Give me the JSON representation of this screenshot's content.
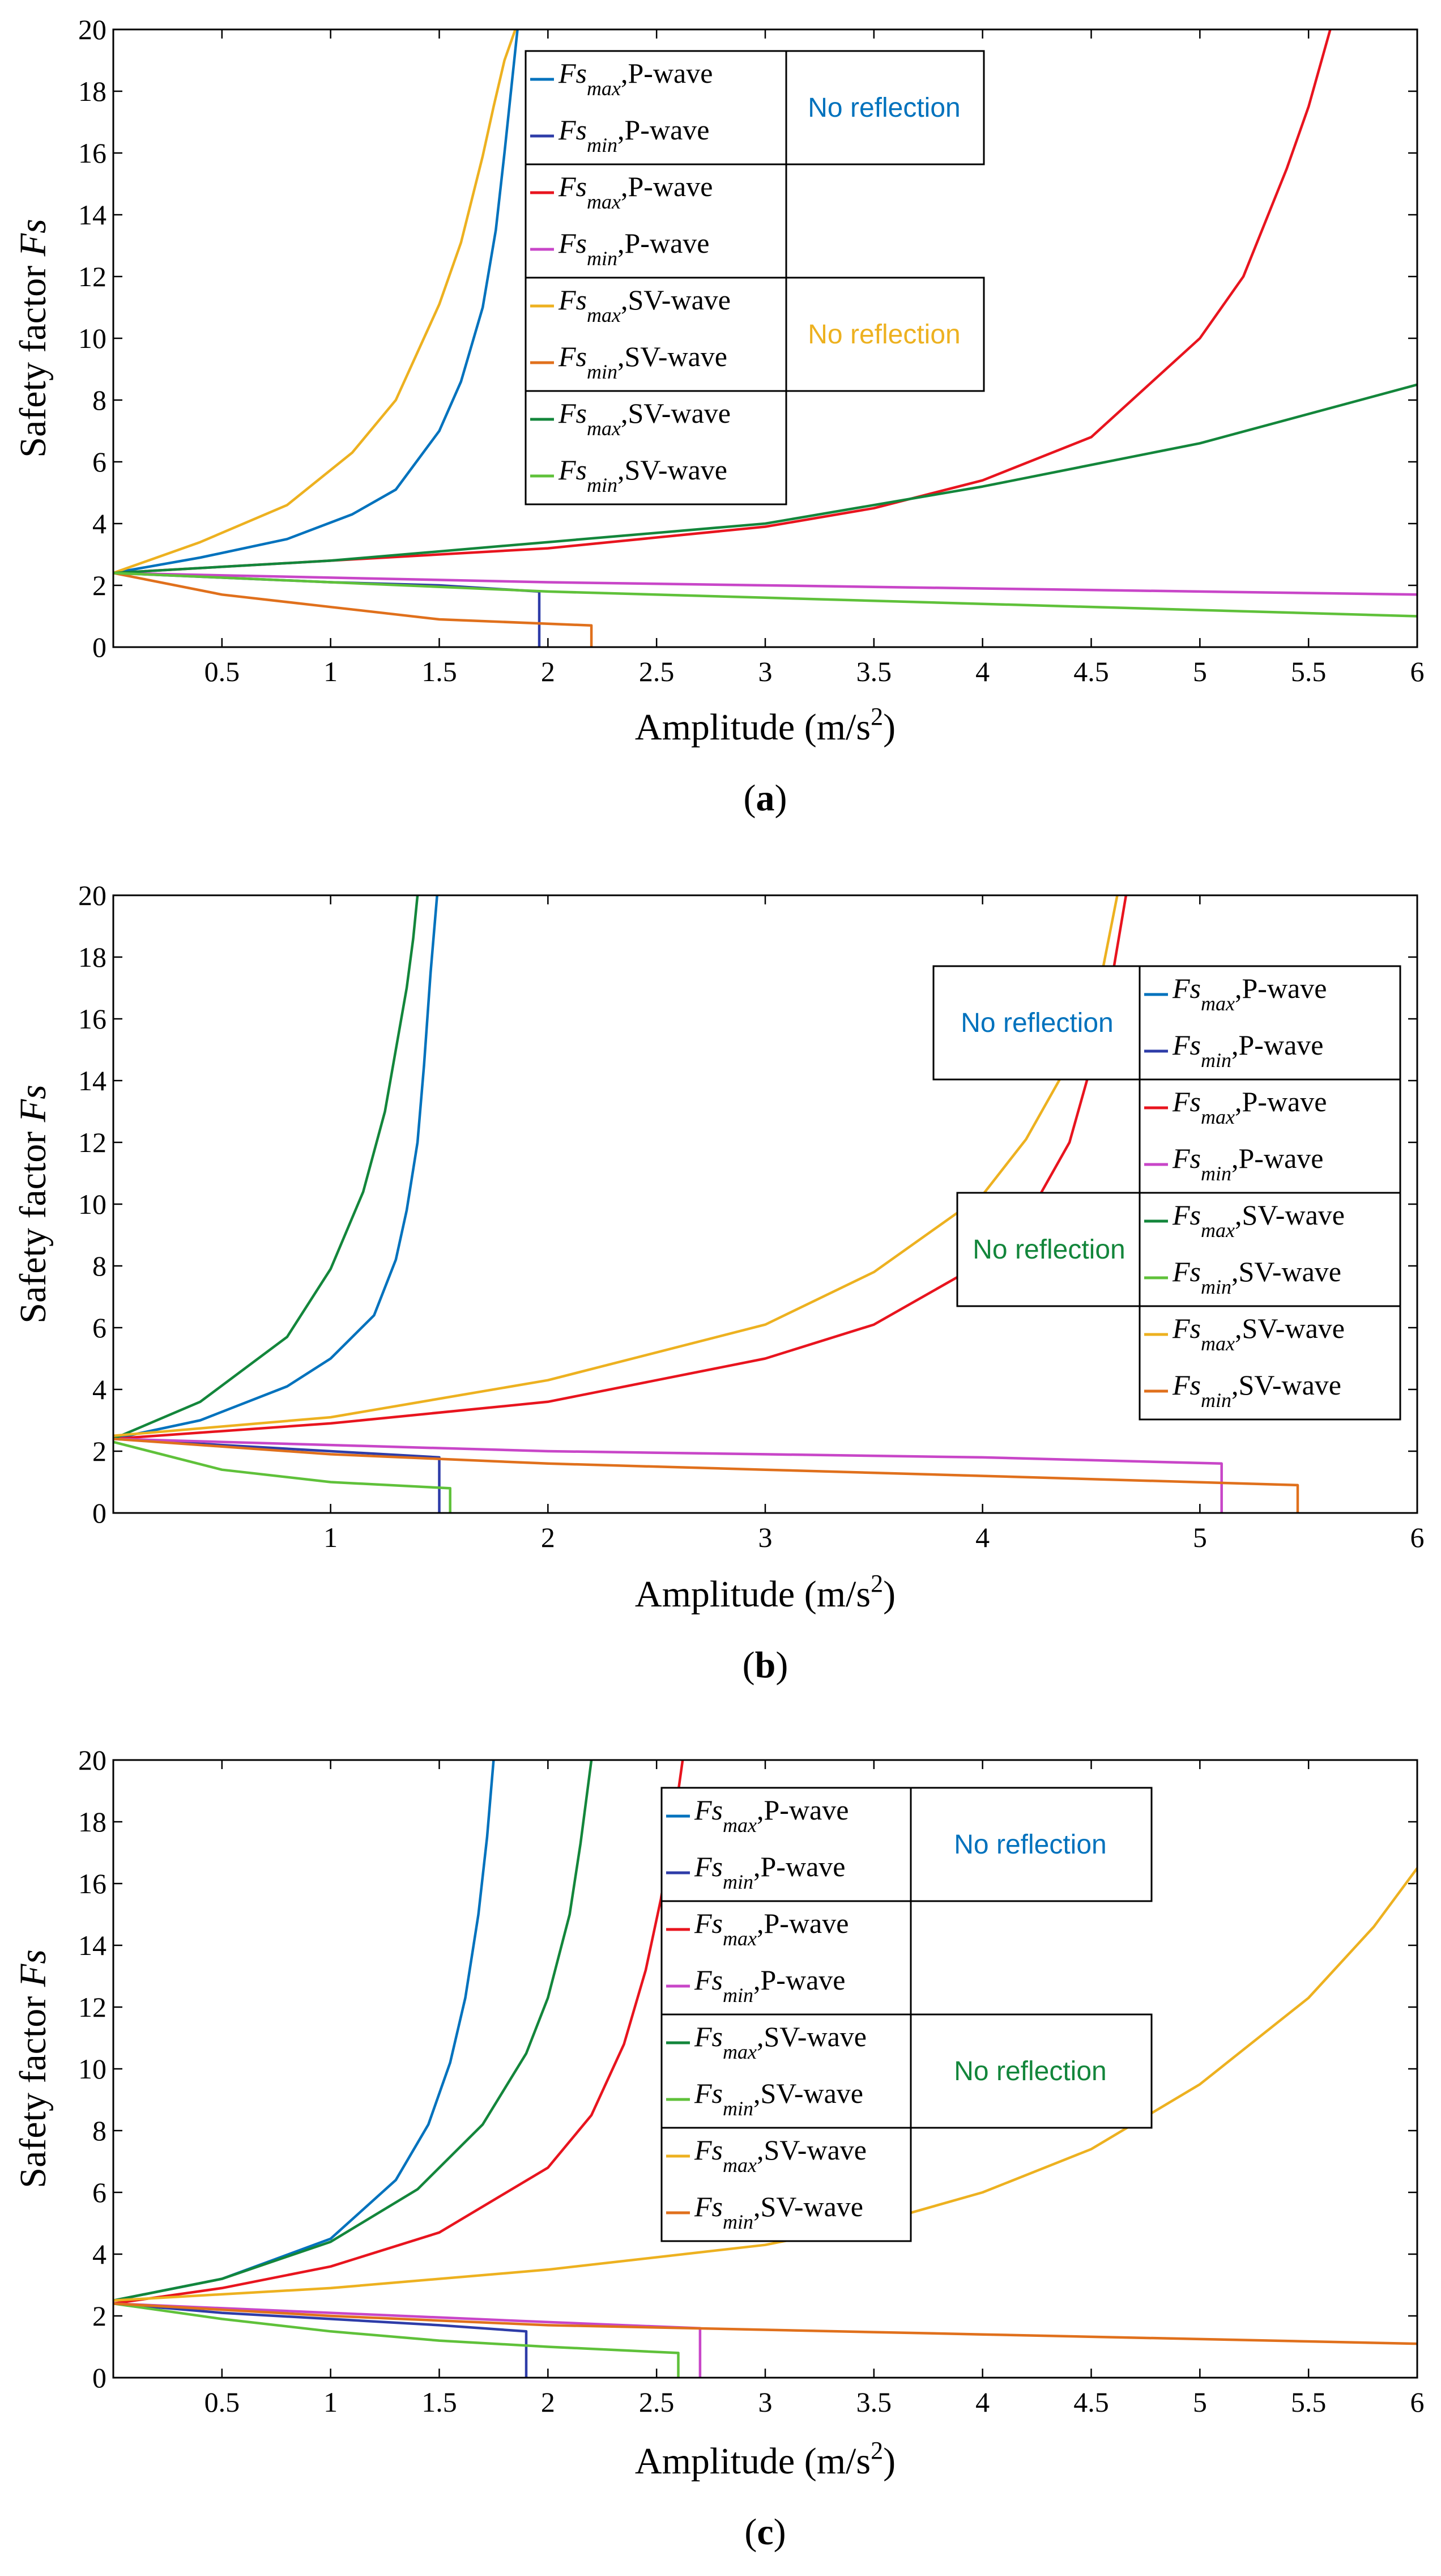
{
  "colors": {
    "blue": "#0072BD",
    "navy": "#2E3CA8",
    "red": "#E8141E",
    "magenta": "#C846C8",
    "yellow": "#EDB120",
    "orange": "#E0701C",
    "dkgreen": "#13863B",
    "ltgreen": "#5FC13A"
  },
  "chart_data": [
    {
      "type": "line",
      "panel_label": "(a)",
      "panel_label_parts": [
        "(",
        "a",
        ")"
      ],
      "xlabel_prefix": "Amplitude (m/s",
      "xlabel_sup": "2",
      "xlabel_suffix": ")",
      "ylabel_prefix": "Safety factor ",
      "ylabel_italic": "Fs",
      "xlim": [
        0,
        6
      ],
      "ylim": [
        0,
        20
      ],
      "xticks": [
        0.5,
        1,
        1.5,
        2,
        2.5,
        3,
        3.5,
        4,
        4.5,
        5,
        5.5,
        6
      ],
      "xtick_labels": [
        "0.5",
        "1",
        "1.5",
        "2",
        "2.5",
        "3",
        "3.5",
        "4",
        "4.5",
        "5",
        "5.5",
        "6"
      ],
      "yticks": [
        0,
        2,
        4,
        6,
        8,
        10,
        12,
        14,
        16,
        18,
        20
      ],
      "ytick_labels": [
        "0",
        "2",
        "4",
        "6",
        "8",
        "10",
        "12",
        "14",
        "16",
        "18",
        "20"
      ],
      "series": [
        {
          "name": "Fs_max, P-wave (no reflection)",
          "color": "blue",
          "x": [
            0,
            0.4,
            0.8,
            1.1,
            1.3,
            1.5,
            1.6,
            1.7,
            1.76,
            1.8,
            1.86
          ],
          "y": [
            2.4,
            2.9,
            3.5,
            4.3,
            5.1,
            7,
            8.6,
            11,
            13.5,
            16,
            20
          ]
        },
        {
          "name": "Fs_min, P-wave (no reflection)",
          "color": "navy",
          "x": [
            0,
            0.5,
            1,
            1.5,
            1.96,
            1.96
          ],
          "y": [
            2.4,
            2.25,
            2.1,
            2.0,
            1.8,
            0
          ]
        },
        {
          "name": "Fs_max, P-wave",
          "color": "red",
          "x": [
            0,
            1,
            2,
            3,
            3.5,
            4,
            4.5,
            5,
            5.2,
            5.4,
            5.5,
            5.6
          ],
          "y": [
            2.4,
            2.8,
            3.2,
            3.9,
            4.5,
            5.4,
            6.8,
            10,
            12,
            15.5,
            17.5,
            20
          ]
        },
        {
          "name": "Fs_min, P-wave",
          "color": "magenta",
          "x": [
            0,
            1,
            2,
            3,
            4,
            5,
            6
          ],
          "y": [
            2.4,
            2.25,
            2.1,
            2.0,
            1.9,
            1.8,
            1.7
          ]
        },
        {
          "name": "Fs_max, SV-wave (no reflection)",
          "color": "yellow",
          "x": [
            0,
            0.4,
            0.8,
            1.1,
            1.3,
            1.5,
            1.6,
            1.7,
            1.75,
            1.8,
            1.85
          ],
          "y": [
            2.4,
            3.4,
            4.6,
            6.3,
            8,
            11.1,
            13.1,
            15.9,
            17.5,
            19,
            20
          ]
        },
        {
          "name": "Fs_min, SV-wave (no reflection)",
          "color": "orange",
          "x": [
            0,
            0.5,
            1,
            1.5,
            2.2,
            2.2
          ],
          "y": [
            2.4,
            1.7,
            1.3,
            0.9,
            0.7,
            0
          ]
        },
        {
          "name": "Fs_max, SV-wave",
          "color": "dkgreen",
          "x": [
            0,
            1,
            2,
            3,
            4,
            5,
            6
          ],
          "y": [
            2.4,
            2.8,
            3.4,
            4,
            5.2,
            6.6,
            8.5
          ]
        },
        {
          "name": "Fs_min, SV-wave",
          "color": "ltgreen",
          "x": [
            0,
            1,
            2,
            3,
            4,
            5,
            6
          ],
          "y": [
            2.4,
            2.1,
            1.8,
            1.6,
            1.4,
            1.2,
            1.0
          ]
        }
      ],
      "legend": [
        {
          "sym": "Fs",
          "sub": "max",
          "wave": ",P-wave",
          "color": "blue"
        },
        {
          "sym": "Fs",
          "sub": "min",
          "wave": ",P-wave",
          "color": "navy"
        },
        {
          "sym": "Fs",
          "sub": "max",
          "wave": ",P-wave",
          "color": "red"
        },
        {
          "sym": "Fs",
          "sub": "min",
          "wave": ",P-wave",
          "color": "magenta"
        },
        {
          "sym": "Fs",
          "sub": "max",
          "wave": ",SV-wave",
          "color": "yellow"
        },
        {
          "sym": "Fs",
          "sub": "min",
          "wave": ",SV-wave",
          "color": "orange"
        },
        {
          "sym": "Fs",
          "sub": "max",
          "wave": ",SV-wave",
          "color": "dkgreen"
        },
        {
          "sym": "Fs",
          "sub": "min",
          "wave": ",SV-wave",
          "color": "ltgreen"
        }
      ],
      "annotations": [
        {
          "text": "No reflection",
          "color": "blue",
          "rows": [
            0,
            1
          ]
        },
        {
          "text": "No reflection",
          "color": "yellow",
          "rows": [
            4,
            5
          ]
        }
      ]
    },
    {
      "type": "line",
      "panel_label": "(b)",
      "panel_label_parts": [
        "(",
        "b",
        ")"
      ],
      "xlabel_prefix": "Amplitude (m/s",
      "xlabel_sup": "2",
      "xlabel_suffix": ")",
      "ylabel_prefix": "Safety factor ",
      "ylabel_italic": "Fs",
      "xlim": [
        0,
        6
      ],
      "ylim": [
        0,
        20
      ],
      "xticks": [
        1,
        2,
        3,
        4,
        5,
        6
      ],
      "xtick_labels": [
        "1",
        "2",
        "3",
        "4",
        "5",
        "6"
      ],
      "yticks": [
        0,
        2,
        4,
        6,
        8,
        10,
        12,
        14,
        16,
        18,
        20
      ],
      "ytick_labels": [
        "0",
        "2",
        "4",
        "6",
        "8",
        "10",
        "12",
        "14",
        "16",
        "18",
        "20"
      ],
      "series": [
        {
          "name": "Fs_max, P-wave (no reflection)",
          "color": "blue",
          "x": [
            0,
            0.4,
            0.8,
            1.0,
            1.2,
            1.3,
            1.35,
            1.4,
            1.43,
            1.46,
            1.49
          ],
          "y": [
            2.4,
            3.0,
            4.1,
            5.0,
            6.4,
            8.2,
            9.8,
            12,
            14.5,
            17.5,
            20
          ]
        },
        {
          "name": "Fs_min, P-wave (no reflection)",
          "color": "navy",
          "x": [
            0,
            0.5,
            1,
            1.5,
            1.5
          ],
          "y": [
            2.4,
            2.2,
            2.0,
            1.8,
            0
          ]
        },
        {
          "name": "Fs_max, P-wave",
          "color": "red",
          "x": [
            0,
            1,
            2,
            3,
            3.5,
            4,
            4.2,
            4.4,
            4.5,
            4.6,
            4.66
          ],
          "y": [
            2.4,
            2.9,
            3.6,
            5.0,
            6.1,
            8.1,
            9.5,
            12,
            14.5,
            17.5,
            20
          ]
        },
        {
          "name": "Fs_min, P-wave",
          "color": "magenta",
          "x": [
            0,
            1,
            2,
            3,
            4,
            5.1,
            5.1
          ],
          "y": [
            2.4,
            2.2,
            2.0,
            1.9,
            1.8,
            1.6,
            0
          ]
        },
        {
          "name": "Fs_max, SV-wave (no reflection)",
          "color": "dkgreen",
          "x": [
            0,
            0.4,
            0.8,
            1.0,
            1.15,
            1.25,
            1.3,
            1.35,
            1.38,
            1.4
          ],
          "y": [
            2.4,
            3.6,
            5.7,
            7.9,
            10.4,
            13,
            15,
            17,
            18.6,
            20
          ]
        },
        {
          "name": "Fs_min, SV-wave (no reflection)",
          "color": "ltgreen",
          "x": [
            0,
            0.5,
            1,
            1.55,
            1.55
          ],
          "y": [
            2.3,
            1.4,
            1.0,
            0.8,
            0
          ]
        },
        {
          "name": "Fs_max, SV-wave",
          "color": "yellow",
          "x": [
            0,
            1,
            2,
            3,
            3.5,
            4,
            4.2,
            4.4,
            4.55,
            4.62
          ],
          "y": [
            2.5,
            3.1,
            4.3,
            6.1,
            7.8,
            10.3,
            12.1,
            14.6,
            17.5,
            20
          ]
        },
        {
          "name": "Fs_min, SV-wave",
          "color": "orange",
          "x": [
            0,
            1,
            2,
            3,
            4,
            5.45,
            5.45
          ],
          "y": [
            2.4,
            1.9,
            1.6,
            1.4,
            1.2,
            0.9,
            0
          ]
        }
      ],
      "legend": [
        {
          "sym": "Fs",
          "sub": "max",
          "wave": ",P-wave",
          "color": "blue"
        },
        {
          "sym": "Fs",
          "sub": "min",
          "wave": ",P-wave",
          "color": "navy"
        },
        {
          "sym": "Fs",
          "sub": "max",
          "wave": ",P-wave",
          "color": "red"
        },
        {
          "sym": "Fs",
          "sub": "min",
          "wave": ",P-wave",
          "color": "magenta"
        },
        {
          "sym": "Fs",
          "sub": "max",
          "wave": ",SV-wave",
          "color": "dkgreen"
        },
        {
          "sym": "Fs",
          "sub": "min",
          "wave": ",SV-wave",
          "color": "ltgreen"
        },
        {
          "sym": "Fs",
          "sub": "max",
          "wave": ",SV-wave",
          "color": "yellow"
        },
        {
          "sym": "Fs",
          "sub": "min",
          "wave": ",SV-wave",
          "color": "orange"
        }
      ],
      "annotations": [
        {
          "text": "No reflection",
          "color": "blue",
          "rows": [
            0,
            1
          ]
        },
        {
          "text": "No reflection",
          "color": "dkgreen",
          "rows": [
            4,
            5
          ]
        }
      ]
    },
    {
      "type": "line",
      "panel_label": "(c)",
      "panel_label_parts": [
        "(",
        "c",
        ")"
      ],
      "xlabel_prefix": "Amplitude (m/s",
      "xlabel_sup": "2",
      "xlabel_suffix": ")",
      "ylabel_prefix": "Safety factor ",
      "ylabel_italic": "Fs",
      "xlim": [
        0,
        6
      ],
      "ylim": [
        0,
        20
      ],
      "xticks": [
        0.5,
        1,
        1.5,
        2,
        2.5,
        3,
        3.5,
        4,
        4.5,
        5,
        5.5,
        6
      ],
      "xtick_labels": [
        "0.5",
        "1",
        "1.5",
        "2",
        "2.5",
        "3",
        "3.5",
        "4",
        "4.5",
        "5",
        "5.5",
        "6"
      ],
      "yticks": [
        0,
        2,
        4,
        6,
        8,
        10,
        12,
        14,
        16,
        18,
        20
      ],
      "ytick_labels": [
        "0",
        "2",
        "4",
        "6",
        "8",
        "10",
        "12",
        "14",
        "16",
        "18",
        "20"
      ],
      "series": [
        {
          "name": "Fs_max, P-wave (no reflection)",
          "color": "blue",
          "x": [
            0,
            0.5,
            1.0,
            1.3,
            1.45,
            1.55,
            1.62,
            1.68,
            1.72,
            1.75
          ],
          "y": [
            2.5,
            3.2,
            4.5,
            6.4,
            8.2,
            10.2,
            12.3,
            15,
            17.5,
            20
          ]
        },
        {
          "name": "Fs_min, P-wave (no reflection)",
          "color": "navy",
          "x": [
            0,
            0.5,
            1,
            1.5,
            1.9,
            1.9
          ],
          "y": [
            2.4,
            2.1,
            1.9,
            1.7,
            1.5,
            0
          ]
        },
        {
          "name": "Fs_max, P-wave",
          "color": "red",
          "x": [
            0,
            0.5,
            1,
            1.5,
            2,
            2.2,
            2.35,
            2.45,
            2.52,
            2.58,
            2.62
          ],
          "y": [
            2.4,
            2.9,
            3.6,
            4.7,
            6.8,
            8.5,
            10.8,
            13.2,
            15.5,
            18,
            20
          ]
        },
        {
          "name": "Fs_min, P-wave",
          "color": "magenta",
          "x": [
            0,
            1,
            2,
            2.7,
            2.7
          ],
          "y": [
            2.4,
            2.1,
            1.8,
            1.6,
            0
          ]
        },
        {
          "name": "Fs_max, SV-wave (no reflection)",
          "color": "dkgreen",
          "x": [
            0,
            0.5,
            1,
            1.4,
            1.7,
            1.9,
            2.0,
            2.1,
            2.15,
            2.2
          ],
          "y": [
            2.5,
            3.2,
            4.4,
            6.1,
            8.2,
            10.5,
            12.3,
            15,
            17.3,
            20
          ]
        },
        {
          "name": "Fs_min, SV-wave (no reflection)",
          "color": "ltgreen",
          "x": [
            0,
            0.5,
            1,
            1.5,
            2,
            2.6,
            2.6
          ],
          "y": [
            2.4,
            1.9,
            1.5,
            1.2,
            1.0,
            0.8,
            0
          ]
        },
        {
          "name": "Fs_max, SV-wave",
          "color": "yellow",
          "x": [
            0,
            1,
            2,
            3,
            3.5,
            4,
            4.5,
            5,
            5.5,
            5.8,
            6
          ],
          "y": [
            2.5,
            2.9,
            3.5,
            4.3,
            5.0,
            6.0,
            7.4,
            9.5,
            12.3,
            14.6,
            16.5
          ]
        },
        {
          "name": "Fs_min, SV-wave",
          "color": "orange",
          "x": [
            0,
            1,
            2,
            3,
            4,
            5,
            6
          ],
          "y": [
            2.4,
            2.0,
            1.7,
            1.55,
            1.4,
            1.25,
            1.1
          ]
        }
      ],
      "legend": [
        {
          "sym": "Fs",
          "sub": "max",
          "wave": ",P-wave",
          "color": "blue"
        },
        {
          "sym": "Fs",
          "sub": "min",
          "wave": ",P-wave",
          "color": "navy"
        },
        {
          "sym": "Fs",
          "sub": "max",
          "wave": ",P-wave",
          "color": "red"
        },
        {
          "sym": "Fs",
          "sub": "min",
          "wave": ",P-wave",
          "color": "magenta"
        },
        {
          "sym": "Fs",
          "sub": "max",
          "wave": ",SV-wave",
          "color": "dkgreen"
        },
        {
          "sym": "Fs",
          "sub": "min",
          "wave": ",SV-wave",
          "color": "ltgreen"
        },
        {
          "sym": "Fs",
          "sub": "max",
          "wave": ",SV-wave",
          "color": "yellow"
        },
        {
          "sym": "Fs",
          "sub": "min",
          "wave": ",SV-wave",
          "color": "orange"
        }
      ],
      "annotations": [
        {
          "text": "No reflection",
          "color": "blue",
          "rows": [
            0,
            1
          ]
        },
        {
          "text": "No reflection",
          "color": "dkgreen",
          "rows": [
            4,
            5
          ]
        }
      ]
    }
  ]
}
